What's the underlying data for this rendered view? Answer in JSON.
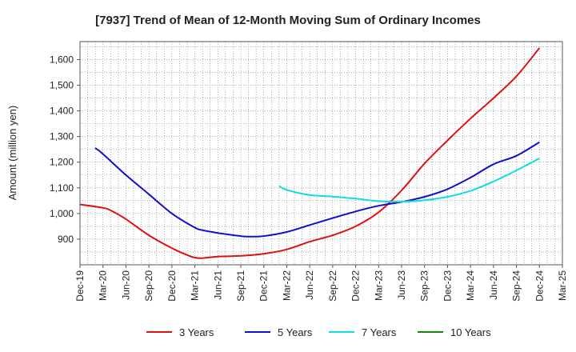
{
  "chart_data": {
    "type": "line",
    "title": "[7937]  Trend of Mean of 12-Month Moving Sum of Ordinary Incomes",
    "ylabel": "Amount (million yen)",
    "xlabel": "",
    "ylim": [
      800,
      1670
    ],
    "yticks": [
      900,
      1000,
      1100,
      1200,
      1300,
      1400,
      1500,
      1600
    ],
    "ytick_labels": [
      "900",
      "1,000",
      "1,100",
      "1,200",
      "1,300",
      "1,400",
      "1,500",
      "1,600"
    ],
    "xlim": [
      0,
      63
    ],
    "xtick_positions": [
      0,
      3,
      6,
      9,
      12,
      15,
      18,
      21,
      24,
      27,
      30,
      33,
      36,
      39,
      42,
      45,
      48,
      51,
      54,
      57,
      60,
      63
    ],
    "categories": [
      "Dec-19",
      "Mar-20",
      "Jun-20",
      "Sep-20",
      "Dec-20",
      "Mar-21",
      "Jun-21",
      "Sep-21",
      "Dec-21",
      "Mar-22",
      "Jun-22",
      "Sep-22",
      "Dec-22",
      "Mar-23",
      "Jun-23",
      "Sep-23",
      "Dec-23",
      "Mar-24",
      "Jun-24",
      "Sep-24",
      "Dec-24",
      "Mar-25"
    ],
    "grid": true,
    "legend_position": "bottom",
    "series": [
      {
        "name": "3 Years",
        "color": "#dd1111",
        "x": [
          0,
          3,
          4,
          6,
          9,
          12,
          14,
          15,
          16,
          18,
          21,
          24,
          27,
          30,
          33,
          36,
          39,
          42,
          45,
          48,
          51,
          54,
          57,
          60
        ],
        "values": [
          1035,
          1022,
          1012,
          978,
          915,
          865,
          838,
          828,
          826,
          832,
          835,
          843,
          860,
          890,
          915,
          950,
          1005,
          1090,
          1195,
          1285,
          1370,
          1450,
          1535,
          1645
        ]
      },
      {
        "name": "5 Years",
        "color": "#1111cc",
        "x": [
          2,
          3,
          6,
          9,
          12,
          15,
          16,
          18,
          21,
          22,
          24,
          27,
          30,
          33,
          36,
          39,
          42,
          45,
          48,
          51,
          54,
          57,
          60
        ],
        "values": [
          1255,
          1232,
          1150,
          1075,
          1000,
          945,
          935,
          924,
          912,
          910,
          912,
          928,
          955,
          982,
          1008,
          1030,
          1045,
          1065,
          1095,
          1140,
          1192,
          1225,
          1278
        ]
      },
      {
        "name": "7 Years",
        "color": "#11dddd",
        "x": [
          26,
          27,
          30,
          33,
          36,
          39,
          42,
          45,
          48,
          51,
          54,
          57,
          60
        ],
        "values": [
          1108,
          1092,
          1072,
          1066,
          1058,
          1048,
          1046,
          1052,
          1065,
          1088,
          1125,
          1168,
          1215
        ]
      },
      {
        "name": "10 Years",
        "color": "#118811",
        "x": [],
        "values": []
      }
    ]
  }
}
